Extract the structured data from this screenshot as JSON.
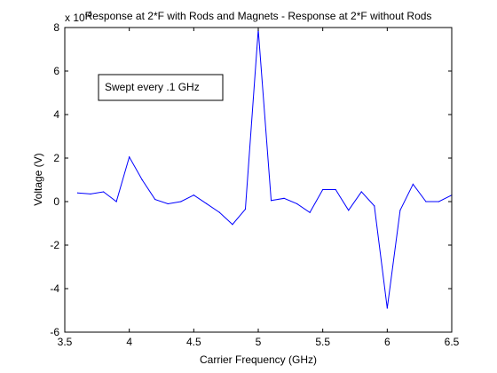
{
  "chart_data": {
    "type": "line",
    "title": "Response at 2*F with Rods and Magnets - Response at 2*F without Rods",
    "xlabel": "Carrier Frequency (GHz)",
    "ylabel": "Voltage (V)",
    "y_multiplier_label": "x 10",
    "y_multiplier_exponent": "-4",
    "xlim": [
      3.5,
      6.5
    ],
    "ylim": [
      -6,
      8
    ],
    "xticks": [
      3.5,
      4,
      4.5,
      5,
      5.5,
      6,
      6.5
    ],
    "xtick_labels": [
      "3.5",
      "4",
      "4.5",
      "5",
      "5.5",
      "6",
      "6.5"
    ],
    "yticks": [
      -6,
      -4,
      -2,
      0,
      2,
      4,
      6,
      8
    ],
    "ytick_labels": [
      "-6",
      "-4",
      "-2",
      "0",
      "2",
      "4",
      "6",
      "8"
    ],
    "grid": false,
    "annotation": "Swept every .1 GHz",
    "series": [
      {
        "color": "#0000ff",
        "x": [
          3.6,
          3.7,
          3.8,
          3.9,
          4.0,
          4.1,
          4.2,
          4.3,
          4.4,
          4.5,
          4.6,
          4.7,
          4.8,
          4.9,
          5.0,
          5.1,
          5.2,
          5.3,
          5.4,
          5.5,
          5.6,
          5.7,
          5.8,
          5.9,
          6.0,
          6.1,
          6.2,
          6.3,
          6.4,
          6.5
        ],
        "y": [
          0.4,
          0.35,
          0.45,
          0.0,
          2.05,
          1.0,
          0.1,
          -0.1,
          0.0,
          0.3,
          -0.1,
          -0.5,
          -1.05,
          -0.35,
          7.9,
          0.05,
          0.15,
          -0.1,
          -0.5,
          0.55,
          0.55,
          -0.4,
          0.45,
          -0.2,
          -4.9,
          -0.4,
          0.8,
          0.0,
          0.0,
          0.3
        ]
      }
    ]
  }
}
